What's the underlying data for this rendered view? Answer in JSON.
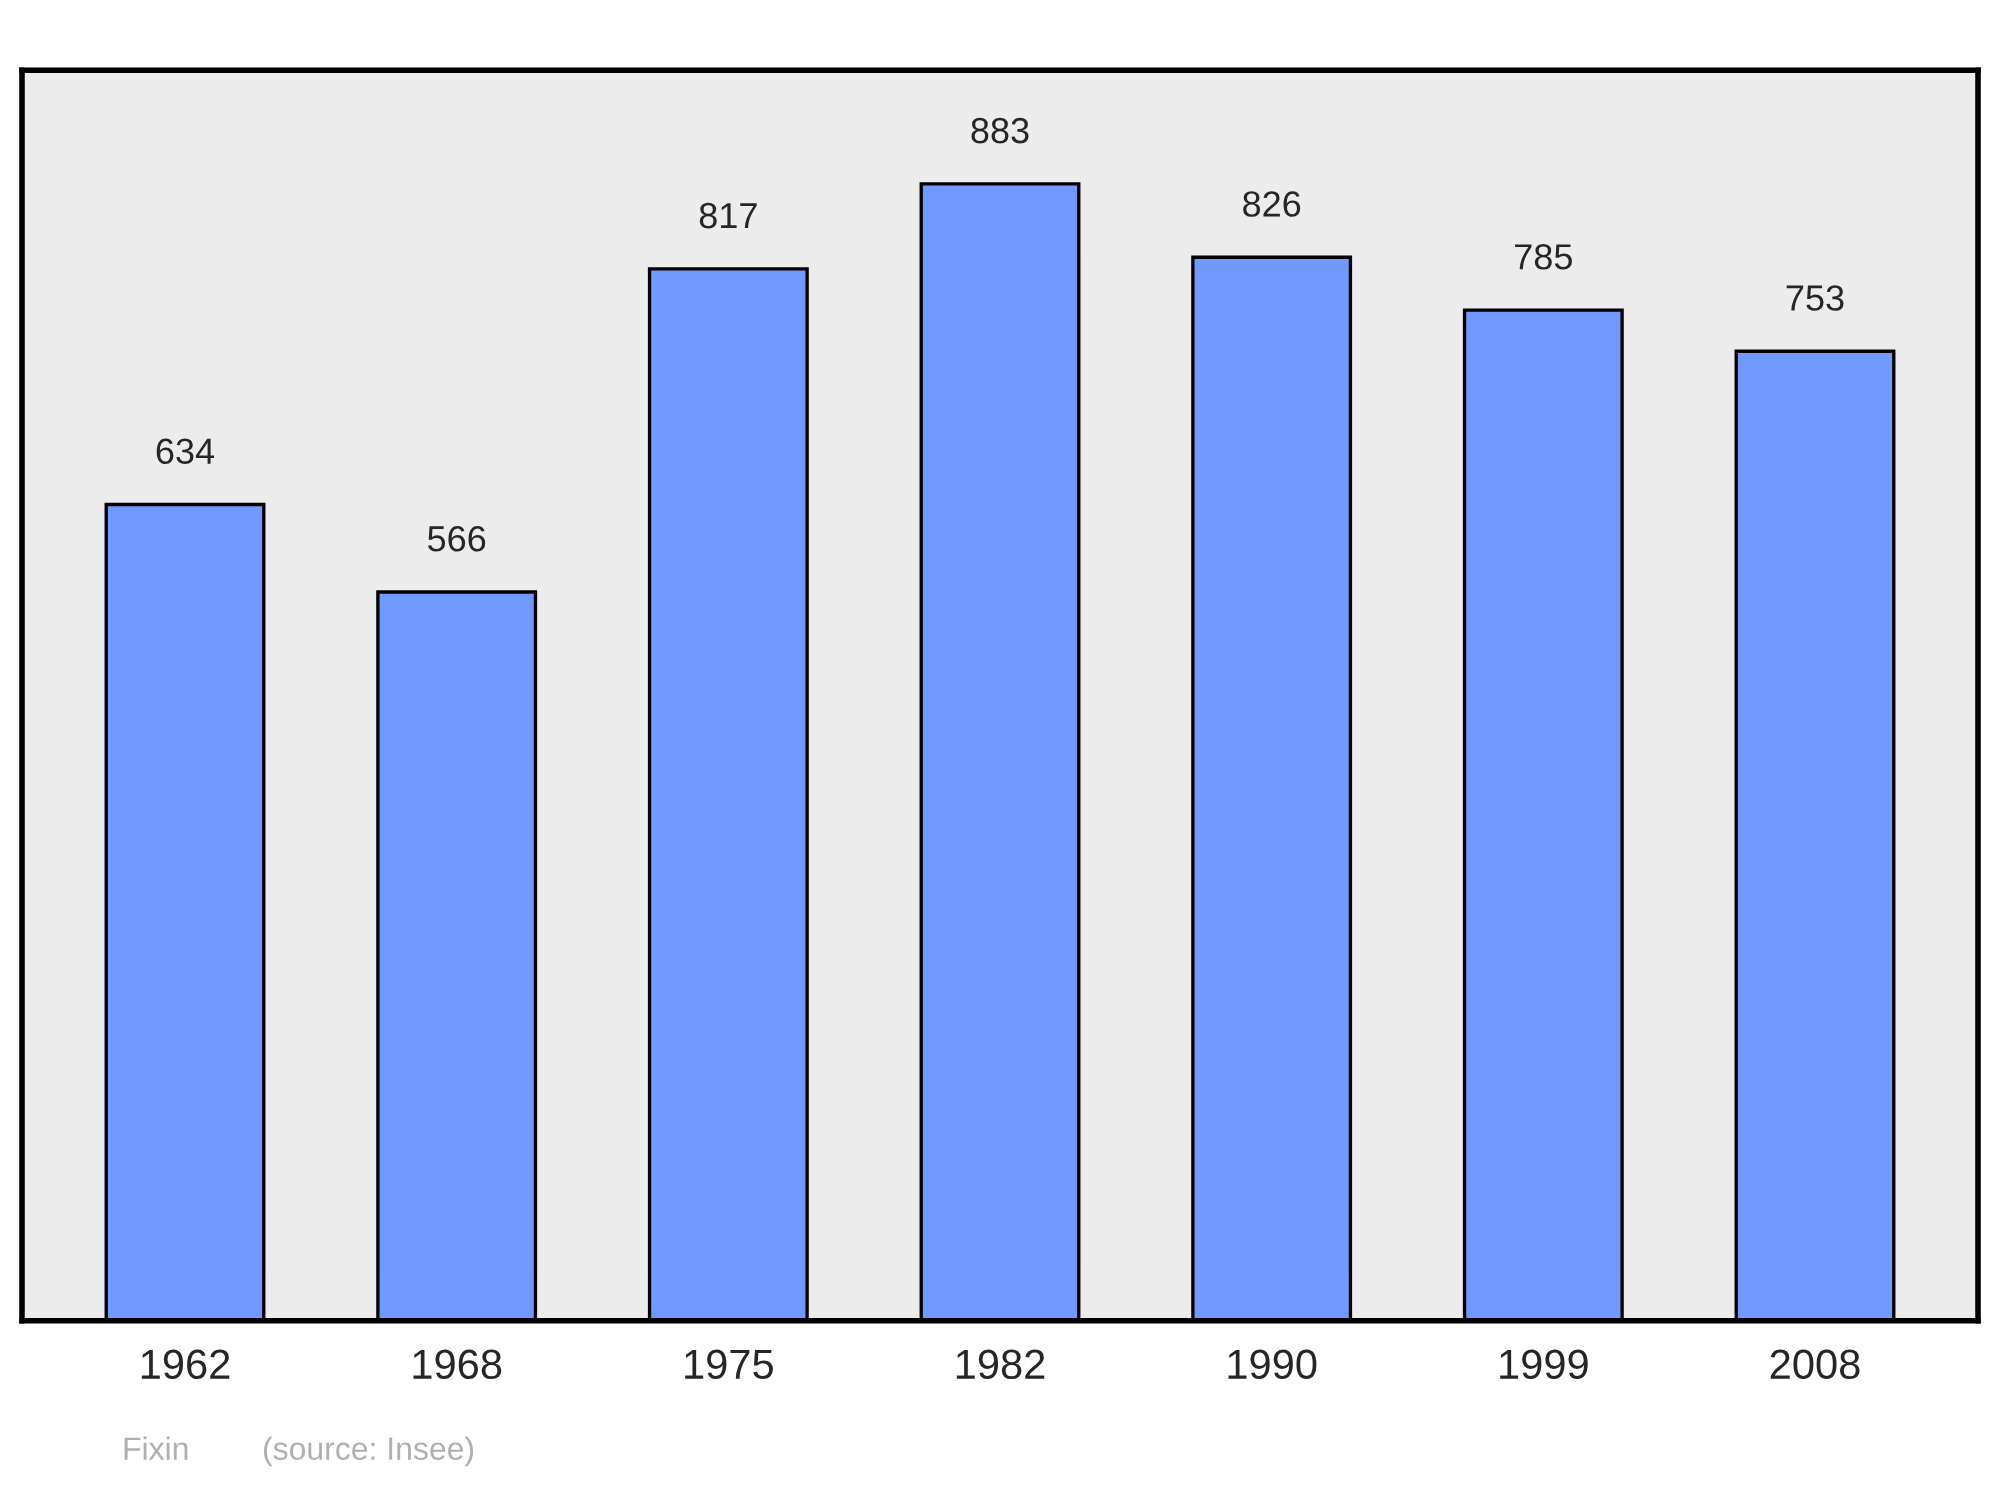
{
  "chart_data": {
    "type": "bar",
    "categories": [
      "1962",
      "1968",
      "1975",
      "1982",
      "1990",
      "1999",
      "2008"
    ],
    "values": [
      634,
      566,
      817,
      883,
      826,
      785,
      753
    ],
    "color": "#7299ff",
    "data_labels": true,
    "annotations": [
      "Fixin",
      "(source: Insee)"
    ]
  }
}
